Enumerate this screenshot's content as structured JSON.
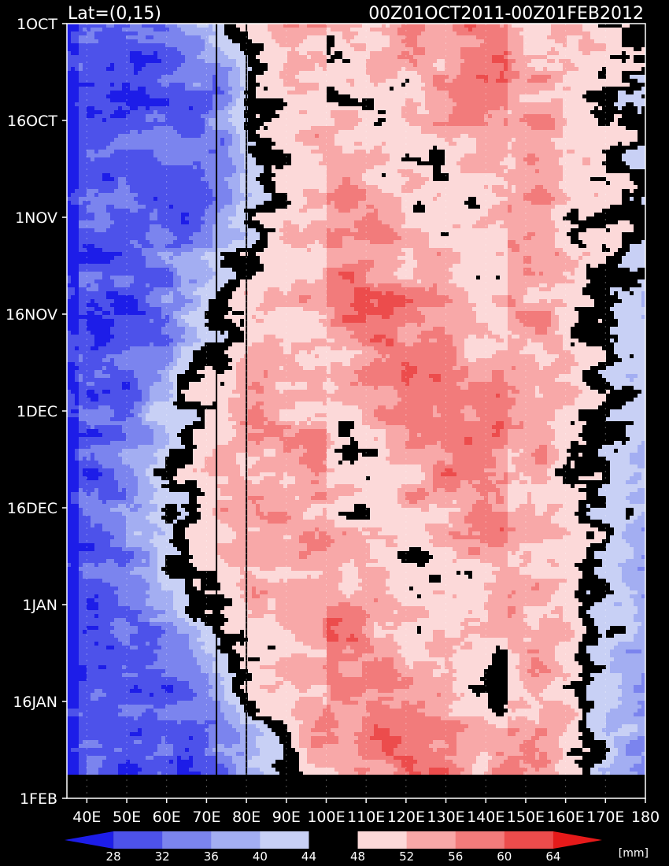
{
  "chart_data": {
    "type": "heatmap",
    "title_left": "Lat=(0,15)",
    "title_right": "00Z01OCT2011-00Z01FEB2012",
    "x_ticks": [
      "40E",
      "50E",
      "60E",
      "70E",
      "80E",
      "90E",
      "100E",
      "110E",
      "120E",
      "130E",
      "140E",
      "150E",
      "160E",
      "170E",
      "180"
    ],
    "x_range": [
      35,
      180
    ],
    "y_ticks": [
      "1OCT",
      "16OCT",
      "1NOV",
      "16NOV",
      "1DEC",
      "16DEC",
      "1JAN",
      "16JAN",
      "1FEB"
    ],
    "y_range": [
      "2011-10-01",
      "2012-02-01"
    ],
    "vertical_lines_lon": [
      72.5,
      80
    ],
    "colorbar": {
      "levels": [
        "28",
        "32",
        "36",
        "40",
        "44",
        "48",
        "52",
        "56",
        "60",
        "64"
      ],
      "colors": [
        "#1d1de8",
        "#4d52ea",
        "#7b84ee",
        "#a3aef2",
        "#c8d0f5",
        "#000000",
        "#fcd9d9",
        "#f8a8a8",
        "#f27b7b",
        "#ec4c4c",
        "#e61a1a"
      ],
      "unit": "[mm]"
    }
  }
}
